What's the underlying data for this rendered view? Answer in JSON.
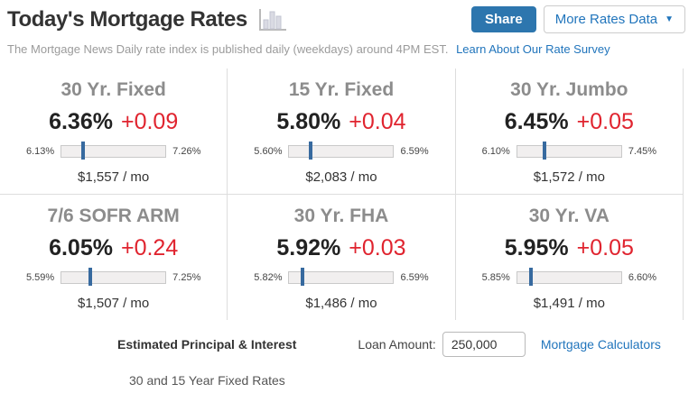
{
  "header": {
    "title": "Today's Mortgage Rates",
    "share_button": "Share",
    "more_rates_button": "More Rates Data",
    "more_rates_caret": "▼"
  },
  "subtitle": {
    "text": "The Mortgage News Daily rate index is published daily (weekdays) around 4PM EST.",
    "link": "Learn About Our Rate Survey"
  },
  "rates": [
    {
      "name": "30 Yr. Fixed",
      "rate": "6.36%",
      "change": "+0.09",
      "low": "6.13%",
      "high": "7.26%",
      "payment": "$1,557 / mo"
    },
    {
      "name": "15 Yr. Fixed",
      "rate": "5.80%",
      "change": "+0.04",
      "low": "5.60%",
      "high": "6.59%",
      "payment": "$2,083 / mo"
    },
    {
      "name": "30 Yr. Jumbo",
      "rate": "6.45%",
      "change": "+0.05",
      "low": "6.10%",
      "high": "7.45%",
      "payment": "$1,572 / mo"
    },
    {
      "name": "7/6 SOFR ARM",
      "rate": "6.05%",
      "change": "+0.24",
      "low": "5.59%",
      "high": "7.25%",
      "payment": "$1,507 / mo"
    },
    {
      "name": "30 Yr. FHA",
      "rate": "5.92%",
      "change": "+0.03",
      "low": "5.82%",
      "high": "6.59%",
      "payment": "$1,486 / mo"
    },
    {
      "name": "30 Yr. VA",
      "rate": "5.95%",
      "change": "+0.05",
      "low": "5.85%",
      "high": "6.60%",
      "payment": "$1,491 / mo"
    }
  ],
  "footer": {
    "estimated_label": "Estimated Principal & Interest",
    "loan_amount_label": "Loan Amount:",
    "loan_amount_value": "250,000",
    "calculators_link": "Mortgage Calculators"
  },
  "bottom_caption": "30 and 15 Year Fixed Rates",
  "colors": {
    "share_button_bg": "#2d76ae",
    "link_blue": "#2175bc",
    "change_red": "#e0242f",
    "slider_marker_blue": "#376a9f"
  }
}
